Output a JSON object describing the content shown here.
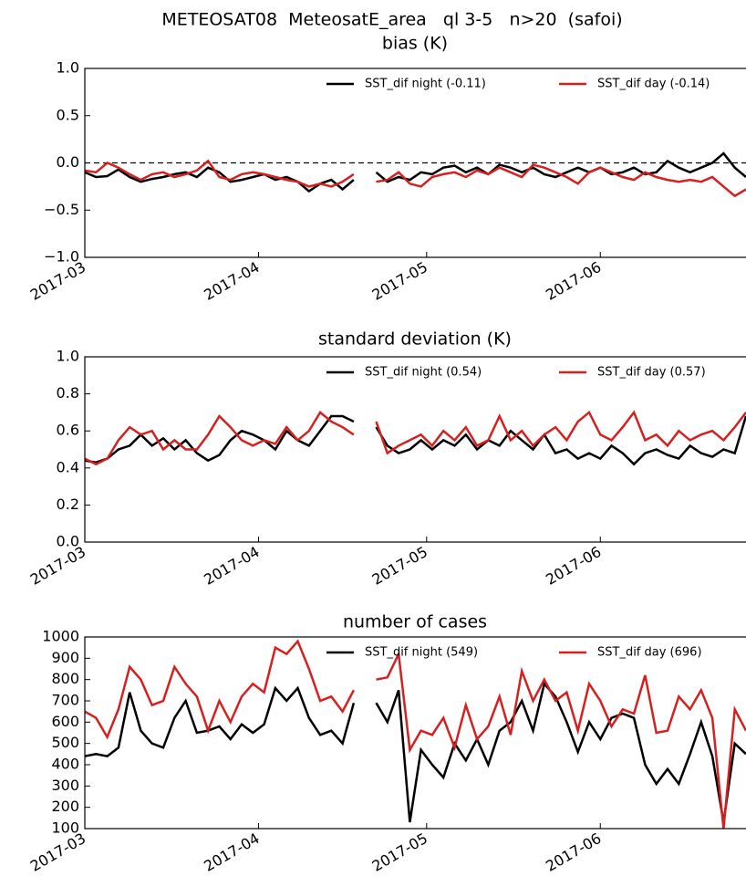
{
  "title": "METEOSAT08  MeteosatE_area   ql 3-5   n>20  (safoi)",
  "chart_data": [
    {
      "type": "line",
      "title": "bias (K)",
      "legend": "upper right",
      "reference_line": 0,
      "x": [
        0,
        2,
        4,
        6,
        8,
        10,
        12,
        14,
        16,
        18,
        20,
        22,
        24,
        26,
        28,
        30,
        32,
        34,
        36,
        38,
        40,
        42,
        44,
        46,
        48,
        50,
        52,
        54,
        56,
        58,
        60,
        62,
        64,
        66,
        68,
        70,
        72,
        74,
        76,
        78,
        80,
        82,
        84,
        86,
        88,
        90,
        92,
        94,
        96,
        98,
        100,
        102,
        104,
        106,
        108,
        110,
        112,
        114,
        116,
        118
      ],
      "xlim": [
        0,
        118
      ],
      "xticks": [
        {
          "value": 0,
          "label": "2017-03"
        },
        {
          "value": 31,
          "label": "2017-04"
        },
        {
          "value": 61,
          "label": "2017-05"
        },
        {
          "value": 92,
          "label": "2017-06"
        }
      ],
      "ylim": [
        -1,
        1
      ],
      "yticks": [
        {
          "value": -1,
          "label": "−1.0"
        },
        {
          "value": -0.5,
          "label": "−0.5"
        },
        {
          "value": 0,
          "label": "0.0"
        },
        0.5,
        {
          "value": 1,
          "label": "1.0"
        }
      ],
      "series": [
        {
          "name": "SST_dif night (-0.11)",
          "color": "#000000",
          "values": [
            -0.1,
            -0.15,
            -0.14,
            -0.07,
            -0.15,
            -0.2,
            -0.17,
            -0.15,
            -0.12,
            -0.1,
            -0.15,
            -0.05,
            -0.1,
            -0.2,
            -0.18,
            -0.15,
            -0.12,
            -0.18,
            -0.15,
            -0.2,
            -0.3,
            -0.22,
            -0.18,
            -0.28,
            -0.18,
            null,
            -0.1,
            -0.2,
            -0.15,
            -0.18,
            -0.1,
            -0.12,
            -0.05,
            -0.03,
            -0.1,
            -0.05,
            -0.12,
            -0.02,
            -0.05,
            -0.1,
            -0.05,
            -0.12,
            -0.15,
            -0.1,
            -0.05,
            -0.1,
            -0.05,
            -0.12,
            -0.1,
            -0.05,
            -0.12,
            -0.1,
            0.02,
            -0.05,
            -0.1,
            -0.05,
            0.0,
            0.1,
            -0.05,
            -0.15
          ]
        },
        {
          "name": "SST_dif day (-0.14)",
          "color": "#d62020",
          "values": [
            -0.08,
            -0.1,
            0.0,
            -0.05,
            -0.12,
            -0.18,
            -0.12,
            -0.1,
            -0.15,
            -0.12,
            -0.08,
            0.02,
            -0.15,
            -0.18,
            -0.12,
            -0.1,
            -0.12,
            -0.15,
            -0.18,
            -0.2,
            -0.25,
            -0.22,
            -0.25,
            -0.2,
            -0.12,
            null,
            -0.2,
            -0.18,
            -0.1,
            -0.22,
            -0.25,
            -0.15,
            -0.12,
            -0.1,
            -0.15,
            -0.08,
            -0.12,
            -0.05,
            -0.1,
            -0.15,
            -0.02,
            -0.05,
            -0.1,
            -0.15,
            -0.22,
            -0.1,
            -0.05,
            -0.1,
            -0.15,
            -0.18,
            -0.1,
            -0.15,
            -0.18,
            -0.2,
            -0.18,
            -0.2,
            -0.15,
            -0.25,
            -0.35,
            -0.28
          ]
        }
      ]
    },
    {
      "type": "line",
      "title": "standard deviation (K)",
      "legend": "upper right",
      "x": [
        0,
        2,
        4,
        6,
        8,
        10,
        12,
        14,
        16,
        18,
        20,
        22,
        24,
        26,
        28,
        30,
        32,
        34,
        36,
        38,
        40,
        42,
        44,
        46,
        48,
        50,
        52,
        54,
        56,
        58,
        60,
        62,
        64,
        66,
        68,
        70,
        72,
        74,
        76,
        78,
        80,
        82,
        84,
        86,
        88,
        90,
        92,
        94,
        96,
        98,
        100,
        102,
        104,
        106,
        108,
        110,
        112,
        114,
        116,
        118
      ],
      "xlim": [
        0,
        118
      ],
      "xticks": [
        {
          "value": 0,
          "label": "2017-03"
        },
        {
          "value": 31,
          "label": "2017-04"
        },
        {
          "value": 61,
          "label": "2017-05"
        },
        {
          "value": 92,
          "label": "2017-06"
        }
      ],
      "ylim": [
        0,
        1
      ],
      "yticks": [
        {
          "value": 0,
          "label": "0.0"
        },
        0.2,
        0.4,
        0.6,
        0.8,
        {
          "value": 1,
          "label": "1.0"
        }
      ],
      "series": [
        {
          "name": "SST_dif night (0.54)",
          "color": "#000000",
          "values": [
            0.44,
            0.43,
            0.45,
            0.5,
            0.52,
            0.58,
            0.52,
            0.56,
            0.5,
            0.55,
            0.48,
            0.44,
            0.47,
            0.55,
            0.6,
            0.58,
            0.55,
            0.5,
            0.6,
            0.55,
            0.52,
            0.6,
            0.68,
            0.68,
            0.65,
            null,
            0.62,
            0.52,
            0.48,
            0.5,
            0.55,
            0.5,
            0.55,
            0.52,
            0.58,
            0.5,
            0.55,
            0.52,
            0.6,
            0.55,
            0.5,
            0.58,
            0.48,
            0.5,
            0.45,
            0.48,
            0.45,
            0.52,
            0.48,
            0.42,
            0.48,
            0.5,
            0.47,
            0.45,
            0.52,
            0.48,
            0.46,
            0.5,
            0.48,
            0.68
          ]
        },
        {
          "name": "SST_dif day (0.57)",
          "color": "#d62020",
          "values": [
            0.45,
            0.42,
            0.45,
            0.55,
            0.62,
            0.58,
            0.6,
            0.5,
            0.55,
            0.5,
            0.5,
            0.58,
            0.68,
            0.62,
            0.55,
            0.52,
            0.55,
            0.53,
            0.62,
            0.55,
            0.6,
            0.7,
            0.65,
            0.62,
            0.58,
            null,
            0.65,
            0.48,
            0.52,
            0.55,
            0.58,
            0.52,
            0.6,
            0.55,
            0.62,
            0.52,
            0.55,
            0.68,
            0.55,
            0.6,
            0.52,
            0.58,
            0.62,
            0.55,
            0.65,
            0.7,
            0.58,
            0.55,
            0.62,
            0.7,
            0.55,
            0.58,
            0.52,
            0.6,
            0.55,
            0.58,
            0.6,
            0.55,
            0.62,
            0.7
          ]
        }
      ]
    },
    {
      "type": "line",
      "title": "number of cases",
      "legend": "upper right",
      "x": [
        0,
        2,
        4,
        6,
        8,
        10,
        12,
        14,
        16,
        18,
        20,
        22,
        24,
        26,
        28,
        30,
        32,
        34,
        36,
        38,
        40,
        42,
        44,
        46,
        48,
        50,
        52,
        54,
        56,
        58,
        60,
        62,
        64,
        66,
        68,
        70,
        72,
        74,
        76,
        78,
        80,
        82,
        84,
        86,
        88,
        90,
        92,
        94,
        96,
        98,
        100,
        102,
        104,
        106,
        108,
        110,
        112,
        114,
        116,
        118
      ],
      "xlim": [
        0,
        118
      ],
      "xticks": [
        {
          "value": 0,
          "label": "2017-03"
        },
        {
          "value": 31,
          "label": "2017-04"
        },
        {
          "value": 61,
          "label": "2017-05"
        },
        {
          "value": 92,
          "label": "2017-06"
        }
      ],
      "ylim": [
        100,
        1000
      ],
      "yticks": [
        100,
        200,
        300,
        400,
        500,
        600,
        700,
        800,
        900,
        1000
      ],
      "series": [
        {
          "name": "SST_dif night (549)",
          "color": "#000000",
          "values": [
            440,
            450,
            440,
            480,
            740,
            560,
            500,
            480,
            620,
            700,
            550,
            560,
            580,
            520,
            590,
            550,
            590,
            760,
            700,
            760,
            620,
            540,
            560,
            500,
            690,
            null,
            690,
            600,
            750,
            130,
            470,
            400,
            340,
            500,
            420,
            520,
            400,
            560,
            600,
            700,
            560,
            780,
            720,
            600,
            460,
            600,
            520,
            620,
            640,
            620,
            400,
            310,
            380,
            310,
            450,
            600,
            440,
            130,
            500,
            450
          ]
        },
        {
          "name": "SST_dif day (696)",
          "color": "#d62020",
          "values": [
            650,
            620,
            530,
            660,
            860,
            800,
            680,
            700,
            860,
            780,
            720,
            560,
            700,
            600,
            720,
            780,
            740,
            950,
            920,
            980,
            850,
            700,
            720,
            650,
            750,
            null,
            800,
            810,
            920,
            470,
            560,
            540,
            620,
            480,
            680,
            520,
            580,
            720,
            540,
            840,
            700,
            800,
            700,
            740,
            560,
            780,
            700,
            580,
            660,
            640,
            820,
            550,
            560,
            720,
            660,
            750,
            620,
            100,
            660,
            560
          ]
        }
      ]
    }
  ]
}
